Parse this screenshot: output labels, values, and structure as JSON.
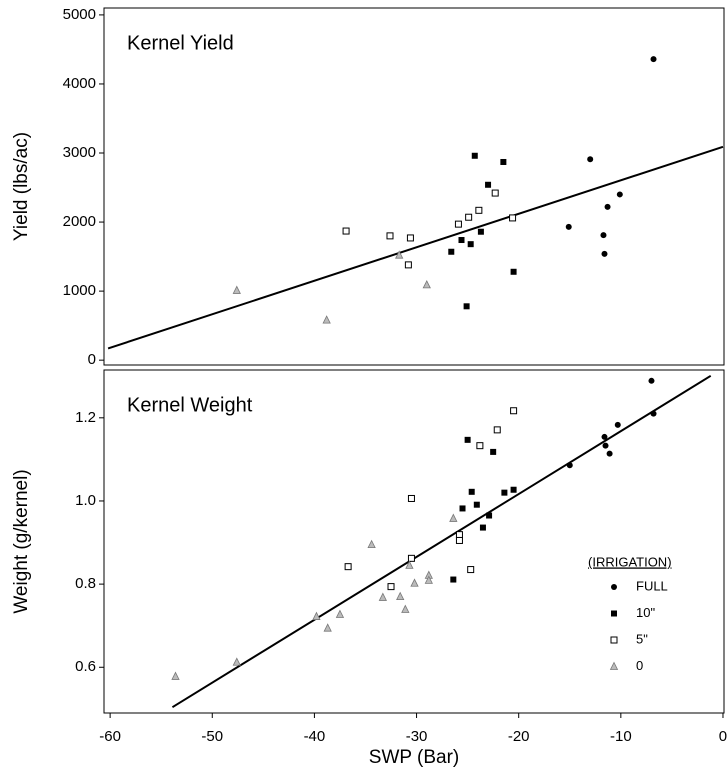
{
  "chart_data": [
    {
      "type": "scatter",
      "title": "Kernel Yield",
      "y_label": "Yield (lbs/ac)",
      "xlim": [
        -60.6,
        0.1
      ],
      "ylim": [
        -70,
        5100
      ],
      "yticks": [
        0,
        1000,
        2000,
        3000,
        4000,
        5000
      ],
      "series": [
        {
          "marker": "circle",
          "color": "#000000",
          "x": [
            -6.8,
            -13.0,
            -10.1,
            -11.3,
            -11.7,
            -11.6,
            -15.1
          ],
          "values": [
            4360,
            2910,
            2400,
            2220,
            1810,
            1540,
            1930
          ]
        },
        {
          "marker": "square",
          "color": "#000000",
          "x": [
            -24.3,
            -21.5,
            -23.0,
            -23.7,
            -25.6,
            -24.7,
            -26.6,
            -20.5,
            -25.1
          ],
          "values": [
            2960,
            2870,
            2540,
            1860,
            1740,
            1680,
            1570,
            1280,
            780
          ]
        },
        {
          "marker": "open-square",
          "color": "#000000",
          "x": [
            -36.9,
            -32.6,
            -30.6,
            -30.8,
            -22.3,
            -23.9,
            -24.9,
            -25.9,
            -20.6
          ],
          "values": [
            1870,
            1800,
            1770,
            1380,
            2420,
            2170,
            2070,
            1970,
            2060
          ]
        },
        {
          "marker": "triangle",
          "color": "#777777",
          "x": [
            -47.6,
            -38.8,
            -29.0,
            -31.7
          ],
          "values": [
            1010,
            580,
            1090,
            1520
          ]
        }
      ],
      "trend_line": {
        "x": [
          -60.2,
          0
        ],
        "values": [
          170,
          3090
        ]
      }
    },
    {
      "type": "scatter",
      "title": "Kernel Weight",
      "y_label": "Weight (g/kernel)",
      "x_label": "SWP (Bar)",
      "xlim": [
        -60.6,
        0.1
      ],
      "xticks": [
        -60,
        -50,
        -40,
        -30,
        -20,
        -10,
        0
      ],
      "ylim": [
        0.49,
        1.315
      ],
      "yticks": [
        0.6,
        0.8,
        {
          "value": 1,
          "label": "1.0"
        },
        1.2
      ],
      "legend_title": "(IRRIGATION)",
      "legend": "lower right",
      "series": [
        {
          "name": "FULL",
          "marker": "circle",
          "color": "#000000",
          "x": [
            -7.0,
            -6.8,
            -10.3,
            -11.6,
            -11.5,
            -11.1,
            -15.0
          ],
          "values": [
            1.289,
            1.21,
            1.183,
            1.154,
            1.133,
            1.114,
            1.086
          ]
        },
        {
          "name": "10\"",
          "marker": "square",
          "color": "#000000",
          "x": [
            -25.0,
            -22.5,
            -24.6,
            -20.5,
            -21.4,
            -24.1,
            -25.5,
            -22.9,
            -23.5,
            -26.4
          ],
          "values": [
            1.147,
            1.118,
            1.022,
            1.027,
            1.02,
            0.991,
            0.982,
            0.965,
            0.936,
            0.811
          ]
        },
        {
          "name": "5\"",
          "marker": "open-square",
          "color": "#000000",
          "x": [
            -20.5,
            -22.1,
            -23.8,
            -30.5,
            -25.8,
            -25.8,
            -24.7,
            -30.5,
            -32.5,
            -36.7
          ],
          "values": [
            1.217,
            1.171,
            1.133,
            1.006,
            0.919,
            0.905,
            0.835,
            0.862,
            0.794,
            0.842
          ]
        },
        {
          "name": "0",
          "marker": "triangle",
          "color": "#777777",
          "x": [
            -53.6,
            -47.6,
            -39.8,
            -38.7,
            -37.5,
            -34.4,
            -33.3,
            -31.6,
            -31.1,
            -30.7,
            -30.2,
            -28.8,
            -28.8,
            -26.4
          ],
          "values": [
            0.578,
            0.612,
            0.722,
            0.694,
            0.727,
            0.895,
            0.768,
            0.77,
            0.739,
            0.845,
            0.802,
            0.821,
            0.809,
            0.958
          ]
        }
      ],
      "trend_line": {
        "x": [
          -53.9,
          -1.2
        ],
        "values": [
          0.504,
          1.301
        ]
      }
    }
  ]
}
